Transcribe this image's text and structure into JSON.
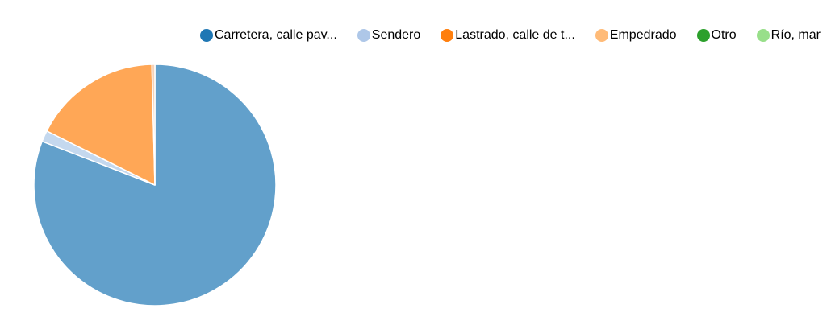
{
  "chart_data": {
    "type": "pie",
    "title": "",
    "legend_position": "top",
    "series": [
      {
        "name": "Carretera, calle pav...",
        "value": 80.9,
        "color": "#1f77b4",
        "slice_color": "#62a0cb"
      },
      {
        "name": "Sendero",
        "value": 1.5,
        "color": "#aec7e8",
        "slice_color": "#c4d8ee"
      },
      {
        "name": "Lastrado, calle de t...",
        "value": 0.0,
        "color": "#ff7f0e",
        "slice_color": "#ff9f4a"
      },
      {
        "name": "Empedrado",
        "value": 17.2,
        "color": "#ffbb78",
        "slice_color": "#ffa756"
      },
      {
        "name": "Otro",
        "value": 0.4,
        "color": "#2ca02c",
        "slice_color": "#f5d2b8"
      },
      {
        "name": "Río, mar",
        "value": 0.0,
        "color": "#98df8a",
        "slice_color": "#b7e8ad"
      }
    ]
  }
}
